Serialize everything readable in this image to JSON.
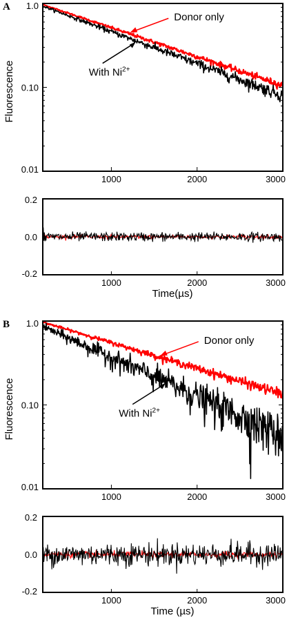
{
  "chart_data": [
    {
      "panel": "A",
      "type": "line",
      "ylabel": "Fluorescence",
      "yscale": "log",
      "xlim": [
        200,
        3000
      ],
      "ylim": [
        0.01,
        1.0
      ],
      "xticks": [
        "1000",
        "2000",
        "3000"
      ],
      "xtick_values": [
        1000,
        2000,
        3000
      ],
      "yticks": [
        "1.0",
        "0.10",
        "0.01"
      ],
      "ytick_values": [
        1.0,
        0.1,
        0.01
      ],
      "series": [
        {
          "name": "Donor only",
          "color": "#ff0000",
          "x": [
            200,
            3000
          ],
          "y": [
            0.97,
            0.105
          ],
          "noise": 0.008
        },
        {
          "name": "With Ni2+",
          "color": "#000000",
          "x": [
            200,
            3000
          ],
          "y": [
            0.93,
            0.08
          ],
          "noise": 0.015
        }
      ],
      "annotations": [
        {
          "label": "Donor only",
          "target_series": 0,
          "at_x": 1200
        },
        {
          "label": "With Ni",
          "sup": "2+",
          "target_series": 1,
          "at_x": 1300
        }
      ],
      "residuals": {
        "xlim": [
          200,
          3000
        ],
        "ylim": [
          -0.2,
          0.2
        ],
        "yticks": [
          "0.2",
          "0.0",
          "-0.2"
        ],
        "ytick_values": [
          0.2,
          0.0,
          -0.2
        ],
        "xticks": [
          "1000",
          "2000",
          "3000"
        ],
        "xtick_values": [
          1000,
          2000,
          3000
        ],
        "xlabel": "Time(µs)",
        "black_noise": 0.012,
        "red_noise": 0.005
      }
    },
    {
      "panel": "B",
      "type": "line",
      "ylabel": "Fluorescence",
      "yscale": "log",
      "xlim": [
        200,
        3000
      ],
      "ylim": [
        0.01,
        1.0
      ],
      "xticks": [
        "1000",
        "2000",
        "3000"
      ],
      "xtick_values": [
        1000,
        2000,
        3000
      ],
      "yticks": [
        "1.0",
        "0.10",
        "0.01"
      ],
      "ytick_values": [
        1.0,
        0.1,
        0.01
      ],
      "series": [
        {
          "name": "Donor only",
          "color": "#ff0000",
          "x": [
            200,
            3000
          ],
          "y": [
            0.97,
            0.135
          ],
          "noise": 0.012
        },
        {
          "name": "With Ni2+",
          "color": "#000000",
          "x": [
            200,
            3000
          ],
          "y": [
            0.86,
            0.045
          ],
          "noise": 0.05
        }
      ],
      "annotations": [
        {
          "label": "Donor only",
          "target_series": 0,
          "at_x": 1550
        },
        {
          "label": "With Ni",
          "sup": "2+",
          "target_series": 1,
          "at_x": 1650
        }
      ],
      "residuals": {
        "xlim": [
          200,
          3000
        ],
        "ylim": [
          -0.2,
          0.2
        ],
        "yticks": [
          "0.2",
          "0.0",
          "-0.2"
        ],
        "ytick_values": [
          0.2,
          0.0,
          -0.2
        ],
        "xticks": [
          "1000",
          "2000",
          "3000"
        ],
        "xtick_values": [
          1000,
          2000,
          3000
        ],
        "xlabel": "Time (µs)",
        "black_noise": 0.03,
        "red_noise": 0.008
      }
    }
  ]
}
